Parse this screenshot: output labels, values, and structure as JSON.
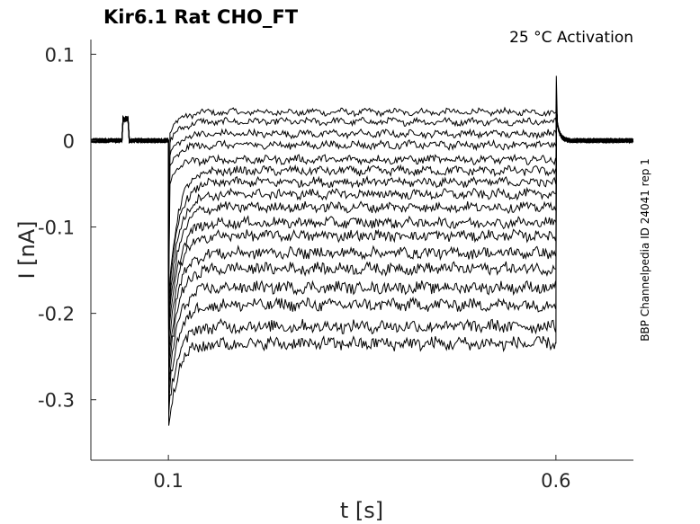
{
  "chart_data": {
    "type": "line",
    "title": "Kir6.1  Rat  CHO_FT",
    "annotation": "25 °C  Activation",
    "side_label": "BBP Channelpedia ID 24041 rep 1",
    "xlabel": "t [s]",
    "ylabel": "I [nA]",
    "xlim": [
      0.0,
      0.7
    ],
    "ylim": [
      -0.37,
      0.117
    ],
    "xticks": [
      {
        "value": 0.1,
        "label": "0.1"
      },
      {
        "value": 0.6,
        "label": "0.6"
      }
    ],
    "yticks": [
      {
        "value": 0.1,
        "label": "0.1"
      },
      {
        "value": 0.0,
        "label": "0"
      },
      {
        "value": -0.1,
        "label": "-0.1"
      },
      {
        "value": -0.2,
        "label": "-0.2"
      },
      {
        "value": -0.3,
        "label": "-0.3"
      }
    ],
    "grid": false,
    "line_color": "#000000",
    "pulse_window": [
      0.1,
      0.6
    ],
    "baseline_current": 0.0,
    "prepulse_artifact": {
      "t_start": 0.04,
      "t_end": 0.048,
      "current": 0.025
    },
    "series_steady_state_currents": [
      0.033,
      0.022,
      0.008,
      -0.005,
      -0.022,
      -0.035,
      -0.048,
      -0.062,
      -0.077,
      -0.095,
      -0.11,
      -0.13,
      -0.148,
      -0.17,
      -0.19,
      -0.215,
      -0.235
    ],
    "peak_transient_current": -0.33,
    "offset_artifact_peak": 0.075
  }
}
